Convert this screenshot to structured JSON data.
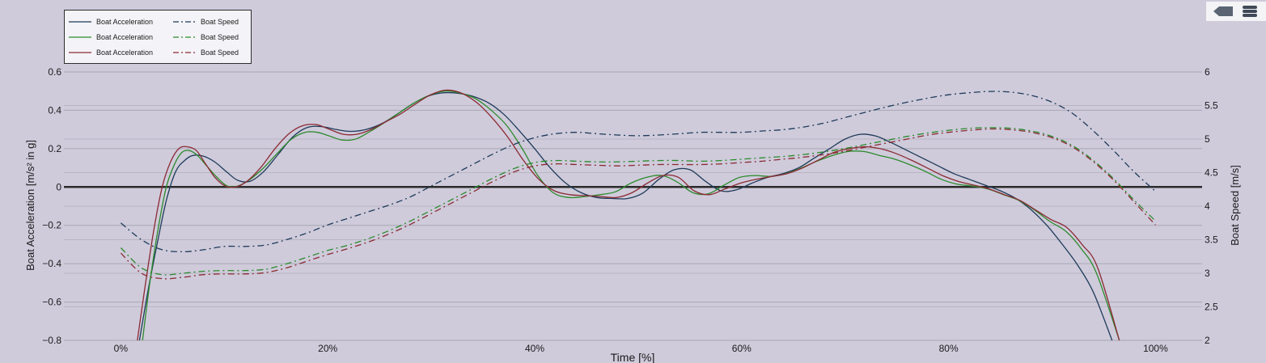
{
  "toolbar": {
    "buttons": [
      "tag-icon",
      "menu-icon"
    ]
  },
  "colors": {
    "blue": "#1f3b5a",
    "green": "#2c8a2c",
    "red": "#8b2a33",
    "background": "#cfcbdb",
    "grid": "#a9a7b3",
    "zero_line": "#2b2b2b"
  },
  "chart_data": {
    "type": "line",
    "title": "",
    "xlabel": "Time [%]",
    "ylabel": "Boat Acceleration [m/s² in g]",
    "y2label": "Boat Speed [m/s]",
    "xlim": [
      -5.5,
      104.5
    ],
    "ylim": [
      -0.8,
      0.6
    ],
    "y2lim": [
      2,
      6
    ],
    "x_ticks": [
      "0%",
      "20%",
      "40%",
      "60%",
      "80%",
      "100%"
    ],
    "x_tick_values": [
      0,
      20,
      40,
      60,
      80,
      100
    ],
    "y_ticks": [
      "0.6",
      "0.4",
      "0.2",
      "0",
      "−0.2",
      "−0.4",
      "−0.6",
      "−0.8"
    ],
    "y_tick_values": [
      0.6,
      0.4,
      0.2,
      0,
      -0.2,
      -0.4,
      -0.6,
      -0.8
    ],
    "y2_ticks": [
      "6",
      "5.5",
      "5",
      "4.5",
      "4",
      "3.5",
      "3",
      "2.5",
      "2"
    ],
    "y2_tick_values": [
      6,
      5.5,
      5,
      4.5,
      4,
      3.5,
      3,
      2.5,
      2
    ],
    "grid": true,
    "legend_position": "top-left",
    "series": [
      {
        "name": "Boat Acceleration",
        "axis": "left",
        "color": "#1f3b5a",
        "dash": "solid",
        "x": [
          1.8,
          2.6,
          3.5,
          4.4,
          5.3,
          6.2,
          7,
          8,
          9.1,
          10.2,
          11.3,
          12.5,
          13.8,
          15.2,
          16.6,
          18,
          19.4,
          20.8,
          22.2,
          23.7,
          25.2,
          26.7,
          28.1,
          29.5,
          30.9,
          32.4,
          33.9,
          35.5,
          37,
          38.4,
          40,
          41.5,
          43,
          44.5,
          46,
          47.5,
          49,
          50.5,
          52,
          53.5,
          55,
          56.5,
          58,
          59.5,
          61,
          62.5,
          64,
          65.5,
          67,
          68.5,
          70,
          71.5,
          73,
          74.5,
          76,
          77.5,
          79,
          80.5,
          82,
          83.5,
          85,
          86.5,
          88,
          89.5,
          91,
          92.5,
          94,
          95.8
        ],
        "values": [
          -0.8,
          -0.55,
          -0.3,
          -0.07,
          0.08,
          0.14,
          0.165,
          0.16,
          0.13,
          0.08,
          0.035,
          0.03,
          0.08,
          0.17,
          0.26,
          0.31,
          0.315,
          0.3,
          0.29,
          0.3,
          0.33,
          0.38,
          0.43,
          0.47,
          0.49,
          0.49,
          0.475,
          0.44,
          0.38,
          0.3,
          0.2,
          0.1,
          0.02,
          -0.03,
          -0.055,
          -0.06,
          -0.06,
          -0.03,
          0.04,
          0.09,
          0.09,
          0.03,
          -0.02,
          -0.015,
          0.02,
          0.05,
          0.07,
          0.1,
          0.15,
          0.2,
          0.25,
          0.275,
          0.265,
          0.23,
          0.19,
          0.15,
          0.11,
          0.07,
          0.04,
          0.01,
          -0.02,
          -0.06,
          -0.12,
          -0.2,
          -0.3,
          -0.41,
          -0.55,
          -0.8
        ]
      },
      {
        "name": "Boat Acceleration",
        "axis": "left",
        "color": "#2c8a2c",
        "dash": "solid",
        "x": [
          2.1,
          2.8,
          3.6,
          4.4,
          5.2,
          5.9,
          6.6,
          7.4,
          8.3,
          9.3,
          10.3,
          11.3,
          12.5,
          13.8,
          15.2,
          16.5,
          17.8,
          19,
          20.2,
          21.4,
          22.7,
          24.1,
          25.6,
          27,
          28.4,
          29.9,
          31.3,
          32.8,
          34.3,
          35.8,
          37.3,
          38.8,
          40.3,
          41.8,
          43.3,
          44.8,
          46.3,
          47.8,
          49.3,
          50.8,
          52.3,
          53.8,
          55.3,
          56.8,
          58.3,
          59.8,
          61.3,
          62.8,
          64.3,
          65.8,
          67.3,
          68.8,
          70.3,
          71.8,
          73.3,
          74.8,
          76.3,
          77.8,
          79.3,
          80.8,
          82.3,
          83.8,
          85.3,
          86.8,
          88.3,
          89.8,
          91.3,
          92.8,
          94.3,
          96.5
        ],
        "values": [
          -0.8,
          -0.5,
          -0.22,
          0.0,
          0.12,
          0.18,
          0.19,
          0.165,
          0.11,
          0.05,
          0.005,
          0.005,
          0.04,
          0.1,
          0.18,
          0.25,
          0.285,
          0.285,
          0.265,
          0.245,
          0.25,
          0.29,
          0.34,
          0.39,
          0.44,
          0.48,
          0.5,
          0.49,
          0.46,
          0.4,
          0.32,
          0.2,
          0.06,
          -0.03,
          -0.055,
          -0.05,
          -0.04,
          -0.025,
          0.02,
          0.05,
          0.06,
          0.025,
          -0.03,
          -0.035,
          0.01,
          0.05,
          0.06,
          0.055,
          0.07,
          0.1,
          0.135,
          0.165,
          0.185,
          0.185,
          0.165,
          0.145,
          0.115,
          0.08,
          0.04,
          0.015,
          0.005,
          -0.01,
          -0.04,
          -0.07,
          -0.12,
          -0.18,
          -0.23,
          -0.32,
          -0.45,
          -0.8
        ]
      },
      {
        "name": "Boat Acceleration",
        "axis": "left",
        "color": "#8b2a33",
        "dash": "solid",
        "x": [
          1.6,
          2.4,
          3.2,
          4,
          4.8,
          5.6,
          6.4,
          7.3,
          8.2,
          9.1,
          10.1,
          11.1,
          12.2,
          13.5,
          14.9,
          16.3,
          17.6,
          18.9,
          20.2,
          21.5,
          22.8,
          24.2,
          25.6,
          27,
          28.4,
          29.9,
          31.4,
          32.9,
          34.4,
          35.9,
          37.4,
          38.9,
          40.4,
          41.9,
          43.4,
          44.9,
          46.4,
          47.9,
          49.4,
          50.9,
          52.4,
          53.9,
          55.4,
          56.9,
          58.4,
          59.9,
          61.4,
          62.9,
          64.4,
          65.9,
          67.4,
          68.9,
          70.4,
          71.9,
          73.4,
          74.9,
          76.4,
          77.9,
          79.4,
          80.9,
          82.4,
          83.9,
          85.4,
          86.9,
          88.4,
          89.9,
          91.4,
          92.9,
          94.4,
          96.5
        ],
        "values": [
          -0.8,
          -0.5,
          -0.22,
          0.0,
          0.13,
          0.2,
          0.21,
          0.19,
          0.12,
          0.05,
          0.005,
          0.0,
          0.03,
          0.1,
          0.2,
          0.28,
          0.32,
          0.325,
          0.3,
          0.275,
          0.275,
          0.3,
          0.34,
          0.38,
          0.43,
          0.48,
          0.505,
          0.49,
          0.44,
          0.36,
          0.26,
          0.14,
          0.04,
          -0.02,
          -0.04,
          -0.045,
          -0.05,
          -0.055,
          -0.03,
          0.02,
          0.06,
          0.05,
          -0.02,
          -0.04,
          -0.01,
          0.02,
          0.04,
          0.055,
          0.07,
          0.1,
          0.14,
          0.18,
          0.2,
          0.21,
          0.2,
          0.175,
          0.14,
          0.1,
          0.06,
          0.03,
          0.01,
          -0.01,
          -0.04,
          -0.07,
          -0.12,
          -0.17,
          -0.21,
          -0.3,
          -0.42,
          -0.8
        ]
      },
      {
        "name": "Boat Speed",
        "axis": "right",
        "color": "#1f3b5a",
        "dash": "dashdot",
        "x": [
          0,
          2,
          4,
          6,
          8,
          10,
          12,
          14,
          16,
          18,
          20,
          22,
          24,
          26,
          28,
          30,
          32,
          34,
          36,
          38,
          40,
          42,
          44,
          46,
          48,
          50,
          52,
          54,
          56,
          58,
          60,
          62,
          64,
          66,
          68,
          70,
          72,
          74,
          76,
          78,
          80,
          82,
          84,
          86,
          88,
          90,
          92,
          94,
          96,
          98,
          100
        ],
        "values": [
          3.75,
          3.5,
          3.35,
          3.32,
          3.35,
          3.4,
          3.4,
          3.42,
          3.5,
          3.6,
          3.72,
          3.82,
          3.92,
          4.02,
          4.14,
          4.3,
          4.46,
          4.62,
          4.78,
          4.92,
          5.02,
          5.08,
          5.1,
          5.08,
          5.06,
          5.05,
          5.06,
          5.08,
          5.1,
          5.1,
          5.1,
          5.12,
          5.14,
          5.18,
          5.24,
          5.32,
          5.4,
          5.48,
          5.55,
          5.61,
          5.66,
          5.69,
          5.71,
          5.7,
          5.65,
          5.55,
          5.38,
          5.12,
          4.82,
          4.5,
          4.22
        ]
      },
      {
        "name": "Boat Speed",
        "axis": "right",
        "color": "#2c8a2c",
        "dash": "dashdot",
        "x": [
          0,
          2,
          4,
          6,
          8,
          10,
          12,
          14,
          16,
          18,
          20,
          22,
          24,
          26,
          28,
          30,
          32,
          34,
          36,
          38,
          40,
          42,
          44,
          46,
          48,
          50,
          52,
          54,
          56,
          58,
          60,
          62,
          64,
          66,
          68,
          70,
          72,
          74,
          76,
          78,
          80,
          82,
          84,
          86,
          88,
          90,
          92,
          94,
          96,
          98,
          100
        ],
        "values": [
          3.38,
          3.08,
          2.98,
          3.0,
          3.03,
          3.04,
          3.04,
          3.06,
          3.14,
          3.24,
          3.34,
          3.42,
          3.52,
          3.64,
          3.78,
          3.94,
          4.1,
          4.26,
          4.42,
          4.56,
          4.65,
          4.68,
          4.67,
          4.66,
          4.66,
          4.67,
          4.68,
          4.68,
          4.67,
          4.68,
          4.7,
          4.72,
          4.74,
          4.77,
          4.81,
          4.86,
          4.92,
          4.98,
          5.04,
          5.09,
          5.13,
          5.16,
          5.17,
          5.16,
          5.12,
          5.04,
          4.9,
          4.68,
          4.4,
          4.08,
          3.78
        ]
      },
      {
        "name": "Boat Speed",
        "axis": "right",
        "color": "#8b2a33",
        "dash": "dashdot",
        "x": [
          0,
          2,
          4,
          6,
          8,
          10,
          12,
          14,
          16,
          18,
          20,
          22,
          24,
          26,
          28,
          30,
          32,
          34,
          36,
          38,
          40,
          42,
          44,
          46,
          48,
          50,
          52,
          54,
          56,
          58,
          60,
          62,
          64,
          66,
          68,
          70,
          72,
          74,
          76,
          78,
          80,
          82,
          84,
          86,
          88,
          90,
          92,
          94,
          96,
          98,
          100
        ],
        "values": [
          3.3,
          3.0,
          2.92,
          2.94,
          2.98,
          2.99,
          2.99,
          3.01,
          3.08,
          3.18,
          3.28,
          3.37,
          3.47,
          3.59,
          3.73,
          3.89,
          4.05,
          4.21,
          4.37,
          4.51,
          4.6,
          4.63,
          4.62,
          4.61,
          4.6,
          4.61,
          4.62,
          4.62,
          4.62,
          4.63,
          4.65,
          4.67,
          4.7,
          4.73,
          4.77,
          4.82,
          4.88,
          4.94,
          5.0,
          5.06,
          5.1,
          5.13,
          5.15,
          5.14,
          5.1,
          5.02,
          4.88,
          4.66,
          4.38,
          4.05,
          3.72
        ]
      }
    ]
  }
}
